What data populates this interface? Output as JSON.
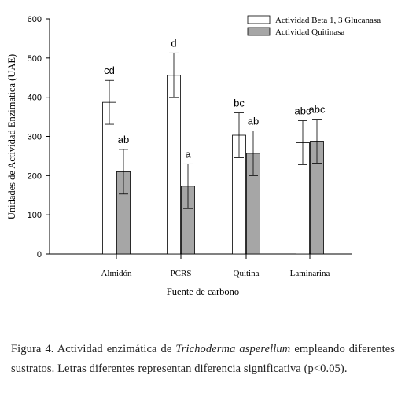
{
  "chart_data": {
    "type": "bar",
    "categories": [
      "Almidón",
      "PCRS",
      "Quitina",
      "Laminarina"
    ],
    "series": [
      {
        "name": "Actividad Beta 1, 3 Glucanasa",
        "color": "#ffffff",
        "values": [
          387,
          456,
          303,
          284
        ],
        "errors": [
          56,
          57,
          57,
          56
        ],
        "letters": [
          "cd",
          "d",
          "bc",
          "abc"
        ]
      },
      {
        "name": "Actividad Quitinasa",
        "color": "#a6a6a6",
        "values": [
          210,
          173,
          257,
          288
        ],
        "errors": [
          57,
          57,
          57,
          56
        ],
        "letters": [
          "ab",
          "a",
          "ab",
          "abc"
        ]
      }
    ],
    "ylim": [
      0,
      600
    ],
    "yticks": [
      "0",
      "100",
      "200",
      "300",
      "400",
      "500",
      "600"
    ],
    "ylabel": "Unidades de Actividad Enzimatica (UAE)",
    "xlabel": "Fuente de carbono",
    "grid": false,
    "legend_position": "top-right"
  },
  "caption": {
    "prefix": "Figura 4. Actividad enzimática de ",
    "species": "Trichoderma asperellum",
    "suffix": " empleando diferentes sustratos. Letras diferentes representan diferencia significativa (p<0.05)."
  }
}
